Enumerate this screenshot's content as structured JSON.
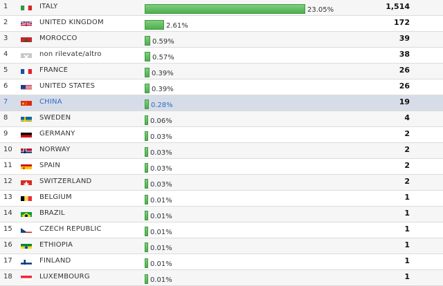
{
  "rows": [
    {
      "rank": "1",
      "country": "ITALY",
      "pct": "23.05%",
      "pct_value": 23.05,
      "count": "1,514",
      "flag": "italy-flag-icon",
      "bar_fraction": 1.0
    },
    {
      "rank": "2",
      "country": "UNITED KINGDOM",
      "pct": "2.61%",
      "pct_value": 2.61,
      "count": "172",
      "flag": "united-kingdom-flag-icon",
      "bar_fraction": 0.12
    },
    {
      "rank": "3",
      "country": "MOROCCO",
      "pct": "0.59%",
      "pct_value": 0.59,
      "count": "39",
      "flag": "morocco-flag-icon",
      "bar_fraction": 0.035
    },
    {
      "rank": "4",
      "country": "non rilevate/altro",
      "pct": "0.57%",
      "pct_value": 0.57,
      "count": "38",
      "flag": "unknown-flag-icon",
      "bar_fraction": 0.035
    },
    {
      "rank": "5",
      "country": "FRANCE",
      "pct": "0.39%",
      "pct_value": 0.39,
      "count": "26",
      "flag": "france-flag-icon",
      "bar_fraction": 0.03
    },
    {
      "rank": "6",
      "country": "UNITED STATES",
      "pct": "0.39%",
      "pct_value": 0.39,
      "count": "26",
      "flag": "united-states-flag-icon",
      "bar_fraction": 0.03
    },
    {
      "rank": "7",
      "country": "CHINA",
      "pct": "0.28%",
      "pct_value": 0.28,
      "count": "19",
      "flag": "china-flag-icon",
      "bar_fraction": 0.025
    },
    {
      "rank": "8",
      "country": "SWEDEN",
      "pct": "0.06%",
      "pct_value": 0.06,
      "count": "4",
      "flag": "sweden-flag-icon",
      "bar_fraction": 0.012
    },
    {
      "rank": "9",
      "country": "GERMANY",
      "pct": "0.03%",
      "pct_value": 0.03,
      "count": "2",
      "flag": "germany-flag-icon",
      "bar_fraction": 0.01
    },
    {
      "rank": "10",
      "country": "NORWAY",
      "pct": "0.03%",
      "pct_value": 0.03,
      "count": "2",
      "flag": "norway-flag-icon",
      "bar_fraction": 0.01
    },
    {
      "rank": "11",
      "country": "SPAIN",
      "pct": "0.03%",
      "pct_value": 0.03,
      "count": "2",
      "flag": "spain-flag-icon",
      "bar_fraction": 0.01
    },
    {
      "rank": "12",
      "country": "SWITZERLAND",
      "pct": "0.03%",
      "pct_value": 0.03,
      "count": "2",
      "flag": "switzerland-flag-icon",
      "bar_fraction": 0.01
    },
    {
      "rank": "13",
      "country": "BELGIUM",
      "pct": "0.01%",
      "pct_value": 0.01,
      "count": "1",
      "flag": "belgium-flag-icon",
      "bar_fraction": 0.008
    },
    {
      "rank": "14",
      "country": "BRAZIL",
      "pct": "0.01%",
      "pct_value": 0.01,
      "count": "1",
      "flag": "brazil-flag-icon",
      "bar_fraction": 0.008
    },
    {
      "rank": "15",
      "country": "CZECH REPUBLIC",
      "pct": "0.01%",
      "pct_value": 0.01,
      "count": "1",
      "flag": "czech-republic-flag-icon",
      "bar_fraction": 0.008
    },
    {
      "rank": "16",
      "country": "ETHIOPIA",
      "pct": "0.01%",
      "pct_value": 0.01,
      "count": "1",
      "flag": "ethiopia-flag-icon",
      "bar_fraction": 0.008
    },
    {
      "rank": "17",
      "country": "FINLAND",
      "pct": "0.01%",
      "pct_value": 0.01,
      "count": "1",
      "flag": "finland-flag-icon",
      "bar_fraction": 0.008
    },
    {
      "rank": "18",
      "country": "LUXEMBOURG",
      "pct": "0.01%",
      "pct_value": 0.01,
      "count": "1",
      "flag": "luxembourg-flag-icon",
      "bar_fraction": 0.008
    }
  ],
  "highlighted_rank": "7",
  "colors": {
    "bar": "#5cb85c",
    "highlight_row": "#d7dde8",
    "highlight_text": "#2b6cc4"
  }
}
